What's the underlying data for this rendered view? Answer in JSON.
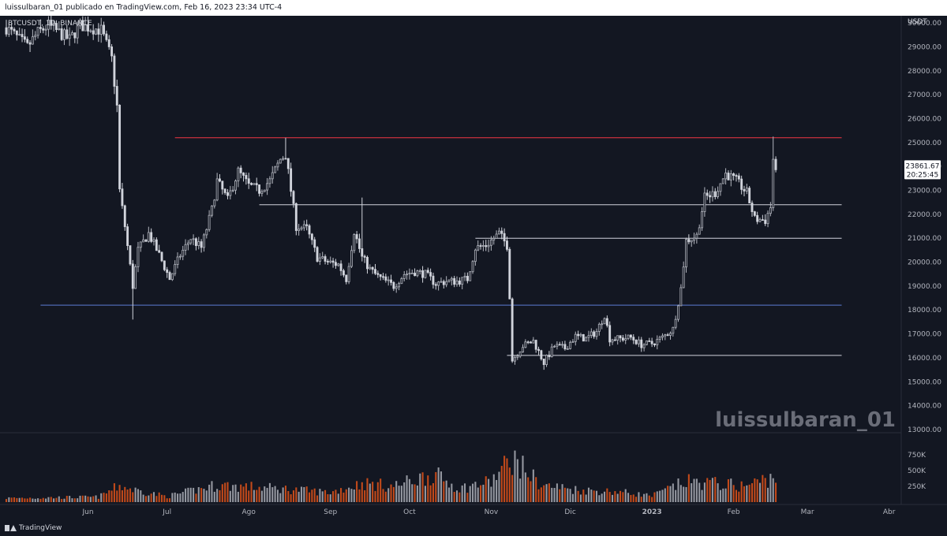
{
  "header": {
    "publish_text": "luissulbaran_01 publicado en TradingView.com, Feb 16, 2023 23:34 UTC-4"
  },
  "footer": {
    "brand": "TradingView"
  },
  "chart_data": {
    "type": "candlestick",
    "symbol_label": "BTCUSDT, 1D, BINANCE",
    "currency": "USDT",
    "watermark": "luissulbaran_01",
    "price_axis": {
      "ticks": [
        30000,
        29000,
        28000,
        27000,
        26000,
        25000,
        24000,
        23000,
        22000,
        21000,
        20000,
        19000,
        18000,
        17000,
        16000,
        15000,
        14000,
        13000
      ],
      "tick_labels": [
        "30000.00",
        "29000.00",
        "28000.00",
        "27000.00",
        "26000.00",
        "25000.00",
        "24000.00",
        "23000.00",
        "22000.00",
        "21000.00",
        "20000.00",
        "19000.00",
        "18000.00",
        "17000.00",
        "16000.00",
        "15000.00",
        "14000.00",
        "13000.00"
      ],
      "range": [
        12900,
        30300
      ]
    },
    "volume_axis": {
      "ticks": [
        750000,
        500000,
        250000
      ],
      "tick_labels": [
        "750K",
        "500K",
        "250K"
      ]
    },
    "time_axis": {
      "labels": [
        "Jun",
        "Jul",
        "Ago",
        "Sep",
        "Oct",
        "Nov",
        "Dic",
        "2023",
        "Feb",
        "Mar",
        "Abr"
      ],
      "dates": [
        "2022-06-01",
        "2022-07-01",
        "2022-08-01",
        "2022-09-01",
        "2022-10-01",
        "2022-11-01",
        "2022-12-01",
        "2023-01-01",
        "2023-02-01",
        "2023-03-01",
        "2023-04-01"
      ]
    },
    "last_price": {
      "value": 23861.67,
      "label": "23861.67",
      "countdown": "20:25:45"
    },
    "colors": {
      "up": "#b2b5be",
      "down": "#d1d4dc",
      "vol_up": "#9598a1",
      "vol_down": "#c44a1a",
      "red_line": "#f23645",
      "blue_line": "#5b7bd5",
      "white_line": "#d1d4dc"
    },
    "horizontal_lines": [
      {
        "price": 25200,
        "color": "red",
        "from": "2022-07-04",
        "to": "2023-03-14"
      },
      {
        "price": 22400,
        "color": "white",
        "from": "2022-08-05",
        "to": "2023-03-14"
      },
      {
        "price": 21000,
        "color": "white",
        "from": "2022-10-26",
        "to": "2023-03-14"
      },
      {
        "price": 18200,
        "color": "blue",
        "from": "2022-05-14",
        "to": "2023-03-14"
      },
      {
        "price": 16100,
        "color": "white",
        "from": "2022-11-07",
        "to": "2023-03-14"
      }
    ],
    "price_path": [
      [
        "2022-05-01",
        29800
      ],
      [
        "2022-05-05",
        29400
      ],
      [
        "2022-05-09",
        29000
      ],
      [
        "2022-05-13",
        29600
      ],
      [
        "2022-05-17",
        29900
      ],
      [
        "2022-05-21",
        29600
      ],
      [
        "2022-05-25",
        29300
      ],
      [
        "2022-05-29",
        29900
      ],
      [
        "2022-06-02",
        29800
      ],
      [
        "2022-06-06",
        29700
      ],
      [
        "2022-06-10",
        28500
      ],
      [
        "2022-06-12",
        26500
      ],
      [
        "2022-06-13",
        23000
      ],
      [
        "2022-06-15",
        21500
      ],
      [
        "2022-06-18",
        19000
      ],
      [
        "2022-06-20",
        20500
      ],
      [
        "2022-06-24",
        21200
      ],
      [
        "2022-06-28",
        20300
      ],
      [
        "2022-07-02",
        19300
      ],
      [
        "2022-07-06",
        20300
      ],
      [
        "2022-07-10",
        21000
      ],
      [
        "2022-07-14",
        20600
      ],
      [
        "2022-07-18",
        22200
      ],
      [
        "2022-07-20",
        23400
      ],
      [
        "2022-07-24",
        22600
      ],
      [
        "2022-07-28",
        23800
      ],
      [
        "2022-08-01",
        23200
      ],
      [
        "2022-08-05",
        23000
      ],
      [
        "2022-08-09",
        23400
      ],
      [
        "2022-08-13",
        24300
      ],
      [
        "2022-08-15",
        24500
      ],
      [
        "2022-08-19",
        21500
      ],
      [
        "2022-08-23",
        21400
      ],
      [
        "2022-08-27",
        20200
      ],
      [
        "2022-08-31",
        20000
      ],
      [
        "2022-09-04",
        19900
      ],
      [
        "2022-09-07",
        19300
      ],
      [
        "2022-09-10",
        21300
      ],
      [
        "2022-09-13",
        20200
      ],
      [
        "2022-09-16",
        19700
      ],
      [
        "2022-09-19",
        19400
      ],
      [
        "2022-09-22",
        19200
      ],
      [
        "2022-09-25",
        19000
      ],
      [
        "2022-09-29",
        19500
      ],
      [
        "2022-10-03",
        19600
      ],
      [
        "2022-10-07",
        19500
      ],
      [
        "2022-10-11",
        19100
      ],
      [
        "2022-10-15",
        19200
      ],
      [
        "2022-10-19",
        19200
      ],
      [
        "2022-10-23",
        19300
      ],
      [
        "2022-10-26",
        20600
      ],
      [
        "2022-10-30",
        20700
      ],
      [
        "2022-11-04",
        21200
      ],
      [
        "2022-11-07",
        20700
      ],
      [
        "2022-11-08",
        18600
      ],
      [
        "2022-11-09",
        15900
      ],
      [
        "2022-11-13",
        16500
      ],
      [
        "2022-11-17",
        16700
      ],
      [
        "2022-11-21",
        15800
      ],
      [
        "2022-11-25",
        16500
      ],
      [
        "2022-11-29",
        16400
      ],
      [
        "2022-12-03",
        16900
      ],
      [
        "2022-12-07",
        16800
      ],
      [
        "2022-12-11",
        17100
      ],
      [
        "2022-12-14",
        17800
      ],
      [
        "2022-12-16",
        16800
      ],
      [
        "2022-12-20",
        16800
      ],
      [
        "2022-12-24",
        16850
      ],
      [
        "2022-12-28",
        16550
      ],
      [
        "2023-01-01",
        16600
      ],
      [
        "2023-01-05",
        16850
      ],
      [
        "2023-01-09",
        17200
      ],
      [
        "2023-01-12",
        18900
      ],
      [
        "2023-01-14",
        20900
      ],
      [
        "2023-01-18",
        21100
      ],
      [
        "2023-01-21",
        22700
      ],
      [
        "2023-01-25",
        22900
      ],
      [
        "2023-01-29",
        23700
      ],
      [
        "2023-02-02",
        23400
      ],
      [
        "2023-02-06",
        22900
      ],
      [
        "2023-02-09",
        21800
      ],
      [
        "2023-02-13",
        21750
      ],
      [
        "2023-02-15",
        22300
      ],
      [
        "2023-02-16",
        24300
      ],
      [
        "2023-02-17",
        23861.67
      ]
    ],
    "spikes": [
      [
        "2022-06-18",
        17600,
        "low"
      ],
      [
        "2022-08-15",
        25200,
        "high"
      ],
      [
        "2022-09-13",
        22700,
        "high"
      ],
      [
        "2022-11-05",
        21450,
        "high"
      ],
      [
        "2022-11-21",
        15500,
        "low"
      ],
      [
        "2023-02-16",
        25250,
        "high"
      ]
    ],
    "volume_path": [
      [
        "2022-05-01",
        70000
      ],
      [
        "2022-06-05",
        90000
      ],
      [
        "2022-06-13",
        290000
      ],
      [
        "2022-06-18",
        220000
      ],
      [
        "2022-07-01",
        100000
      ],
      [
        "2022-07-20",
        300000
      ],
      [
        "2022-08-15",
        230000
      ],
      [
        "2022-09-01",
        170000
      ],
      [
        "2022-09-13",
        330000
      ],
      [
        "2022-09-25",
        280000
      ],
      [
        "2022-10-10",
        490000
      ],
      [
        "2022-10-20",
        240000
      ],
      [
        "2022-11-01",
        360000
      ],
      [
        "2022-11-09",
        770000
      ],
      [
        "2022-11-20",
        300000
      ],
      [
        "2022-12-05",
        210000
      ],
      [
        "2022-12-20",
        180000
      ],
      [
        "2023-01-01",
        110000
      ],
      [
        "2023-01-14",
        360000
      ],
      [
        "2023-01-25",
        330000
      ],
      [
        "2023-02-05",
        280000
      ],
      [
        "2023-02-16",
        440000
      ]
    ]
  }
}
